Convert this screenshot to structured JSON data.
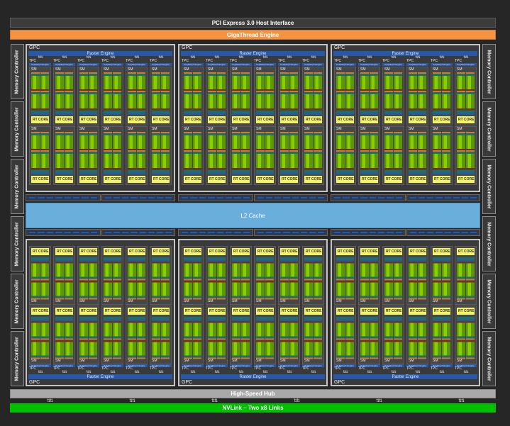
{
  "pci": "PCI Express 3.0 Host Interface",
  "gigathread": "GigaThread Engine",
  "memory_controller": "Memory Controller",
  "memory_controllers_left": 6,
  "memory_controllers_right": 6,
  "gpc_label": "GPC",
  "raster_engine": "Raster Engine",
  "tpc_label": "TPC",
  "polymorph_engine": "PolyMorph Engine",
  "sm_label": "SM",
  "rt_core": "RT CORE",
  "gpcs_per_row": 3,
  "tpcs_per_gpc": 6,
  "sms_per_tpc": 2,
  "l2_cache": "L2 Cache",
  "high_speed_hub": "High-Speed Hub",
  "nvlink": "NVLink – Two x8 Links",
  "colors": {
    "giga": "#f39443",
    "l2": "#6aaedc",
    "nvlink": "#00c000",
    "rt": "#f4f46a",
    "raster": "#2857a8"
  }
}
